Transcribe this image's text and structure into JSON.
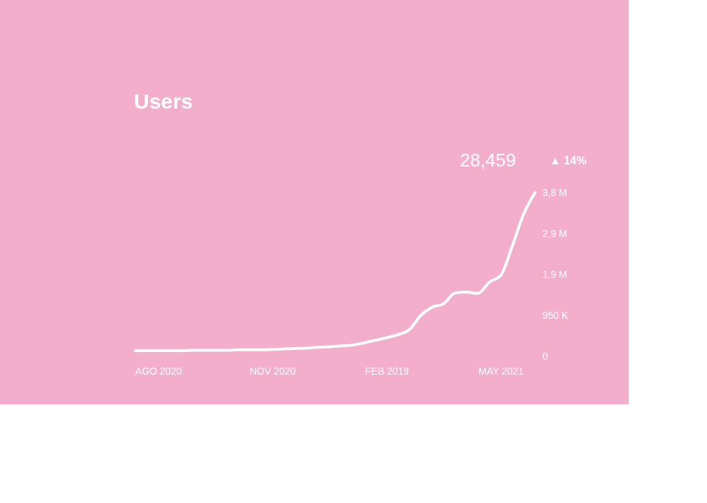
{
  "chart_data": {
    "type": "line",
    "title": "Users",
    "annotations": [
      "28,459",
      "▲ 14%"
    ],
    "categories": [
      null,
      null,
      "AGO 2020",
      null,
      null,
      null,
      null,
      null,
      null,
      null,
      null,
      null,
      "NOV 2020",
      null,
      null,
      null,
      null,
      null,
      null,
      null,
      null,
      null,
      "FEB 2019",
      null,
      null,
      null,
      null,
      null,
      null,
      null,
      null,
      null,
      "MAY 2021",
      null,
      null,
      null
    ],
    "series": [
      {
        "color": "#ffffff",
        "values": [
          130000,
          130000,
          130000,
          130000,
          130000,
          140000,
          140000,
          140000,
          140000,
          150000,
          150000,
          150000,
          160000,
          170000,
          180000,
          190000,
          210000,
          220000,
          240000,
          260000,
          310000,
          370000,
          430000,
          500000,
          620000,
          950000,
          1140000,
          1220000,
          1470000,
          1490000,
          1460000,
          1720000,
          1880000,
          2550000,
          3300000,
          3800000
        ]
      }
    ],
    "ylim": [
      0,
      3800000
    ],
    "yticks": [
      0,
      {
        "value": 950000,
        "label": "950 K"
      },
      {
        "value": 1900000,
        "label": "1,9 M"
      },
      {
        "value": 2850000,
        "label": "2,9 M"
      },
      {
        "value": 3800000,
        "label": "3,8 M"
      }
    ],
    "grid": false,
    "marker": "none",
    "line_style": "solid"
  }
}
